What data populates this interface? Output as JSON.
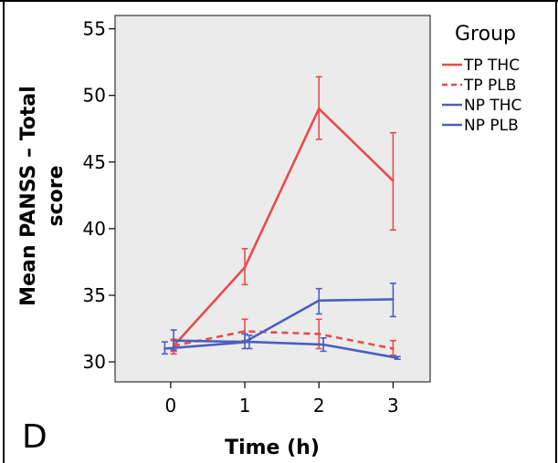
{
  "panel_label": "D",
  "chart_data": {
    "type": "line",
    "xlabel": "Time (h)",
    "ylabel_lines": [
      "Mean PANSS – Total",
      "score"
    ],
    "x": [
      0,
      1,
      2,
      3
    ],
    "x_ticks": [
      "0",
      "1",
      "2",
      "3"
    ],
    "xlim": [
      -0.75,
      3.5
    ],
    "ylim": [
      28.5,
      56
    ],
    "y_ticks": [
      30,
      35,
      40,
      45,
      50,
      55
    ],
    "grid": false,
    "plot_background": "#ebebeb",
    "legend": {
      "title": "Group",
      "position": "right"
    },
    "series": [
      {
        "name": "TP THC",
        "color": "#e84b4b",
        "dash": "solid",
        "x": [
          0.04,
          1,
          2,
          3
        ],
        "values": [
          31.2,
          37.1,
          49.0,
          43.6
        ],
        "err_low": [
          30.6,
          35.8,
          46.7,
          39.9
        ],
        "err_high": [
          31.7,
          38.5,
          51.4,
          47.2
        ]
      },
      {
        "name": "TP PLB",
        "color": "#e84b4b",
        "dash": "dashed",
        "x": [
          0.04,
          1,
          2,
          3
        ],
        "values": [
          31.2,
          32.3,
          32.1,
          31.0
        ],
        "err_low": [
          30.8,
          31.6,
          31.0,
          30.5
        ],
        "err_high": [
          31.6,
          33.2,
          33.2,
          31.6
        ]
      },
      {
        "name": "NP THC",
        "color": "#4a5fbf",
        "dash": "solid",
        "x": [
          0.04,
          1,
          2,
          3
        ],
        "values": [
          31.6,
          31.5,
          34.6,
          34.7
        ],
        "err_low": [
          30.9,
          31.0,
          33.6,
          33.4
        ],
        "err_high": [
          32.4,
          32.1,
          35.5,
          35.9
        ]
      },
      {
        "name": "NP PLB",
        "color": "#4a5fbf",
        "dash": "solid",
        "x": [
          -0.08,
          1.06,
          2.06,
          3.06
        ],
        "values": [
          31.0,
          31.5,
          31.3,
          30.3
        ],
        "err_low": [
          30.6,
          31.0,
          30.8,
          30.2
        ],
        "err_high": [
          31.5,
          32.0,
          31.8,
          30.4
        ]
      }
    ]
  }
}
